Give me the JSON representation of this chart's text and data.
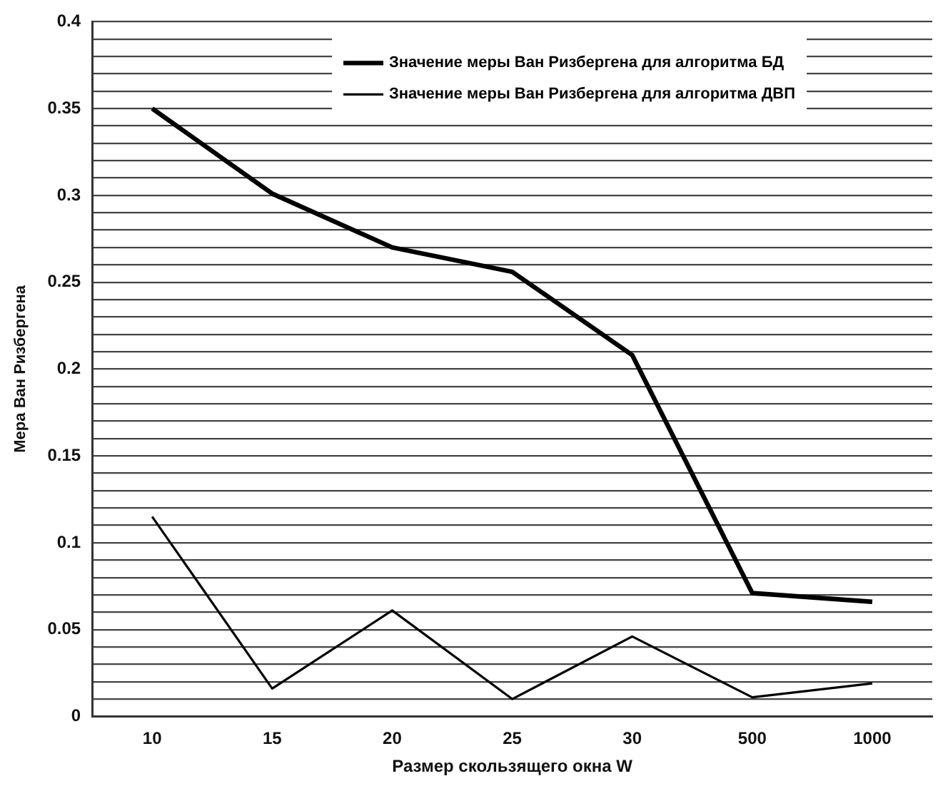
{
  "chart_data": {
    "type": "line",
    "xlabel": "Размер скользящего окна W",
    "ylabel": "Мера Ван Ризбергена",
    "categories": [
      "10",
      "15",
      "20",
      "25",
      "30",
      "500",
      "1000"
    ],
    "series": [
      {
        "name": "Значение меры Ван Ризбергена для алгоритма БД",
        "color": "#000000",
        "values": [
          0.35,
          0.301,
          0.27,
          0.256,
          0.208,
          0.071,
          0.066
        ]
      },
      {
        "name": "Значение меры Ван Ризбергена для алгоритма ДВП",
        "color": "#000000",
        "values": [
          0.115,
          0.016,
          0.061,
          0.01,
          0.046,
          0.011,
          0.019
        ]
      }
    ],
    "ylim": [
      0,
      0.4
    ],
    "yticks": [
      0,
      {
        "value": 0.01,
        "label": null
      },
      {
        "value": 0.02,
        "label": null
      },
      {
        "value": 0.03,
        "label": null
      },
      {
        "value": 0.04,
        "label": null
      },
      0.05,
      {
        "value": 0.06,
        "label": null
      },
      {
        "value": 0.07,
        "label": null
      },
      {
        "value": 0.08,
        "label": null
      },
      {
        "value": 0.09,
        "label": null
      },
      0.1,
      {
        "value": 0.11,
        "label": null
      },
      {
        "value": 0.12,
        "label": null
      },
      {
        "value": 0.13,
        "label": null
      },
      {
        "value": 0.14,
        "label": null
      },
      0.15,
      {
        "value": 0.16,
        "label": null
      },
      {
        "value": 0.17,
        "label": null
      },
      {
        "value": 0.18,
        "label": null
      },
      {
        "value": 0.19,
        "label": null
      },
      0.2,
      {
        "value": 0.21,
        "label": null
      },
      {
        "value": 0.22,
        "label": null
      },
      {
        "value": 0.23,
        "label": null
      },
      {
        "value": 0.24,
        "label": null
      },
      0.25,
      {
        "value": 0.26,
        "label": null
      },
      {
        "value": 0.27,
        "label": null
      },
      {
        "value": 0.28,
        "label": null
      },
      {
        "value": 0.29,
        "label": null
      },
      0.3,
      {
        "value": 0.31,
        "label": null
      },
      {
        "value": 0.32,
        "label": null
      },
      {
        "value": 0.33,
        "label": null
      },
      {
        "value": 0.34,
        "label": null
      },
      0.35,
      {
        "value": 0.36,
        "label": null
      },
      {
        "value": 0.37,
        "label": null
      },
      {
        "value": 0.38,
        "label": null
      },
      {
        "value": 0.39,
        "label": null
      },
      0.4
    ],
    "grid": "y",
    "legend": "top",
    "marker": "none",
    "line_style": "solid"
  }
}
